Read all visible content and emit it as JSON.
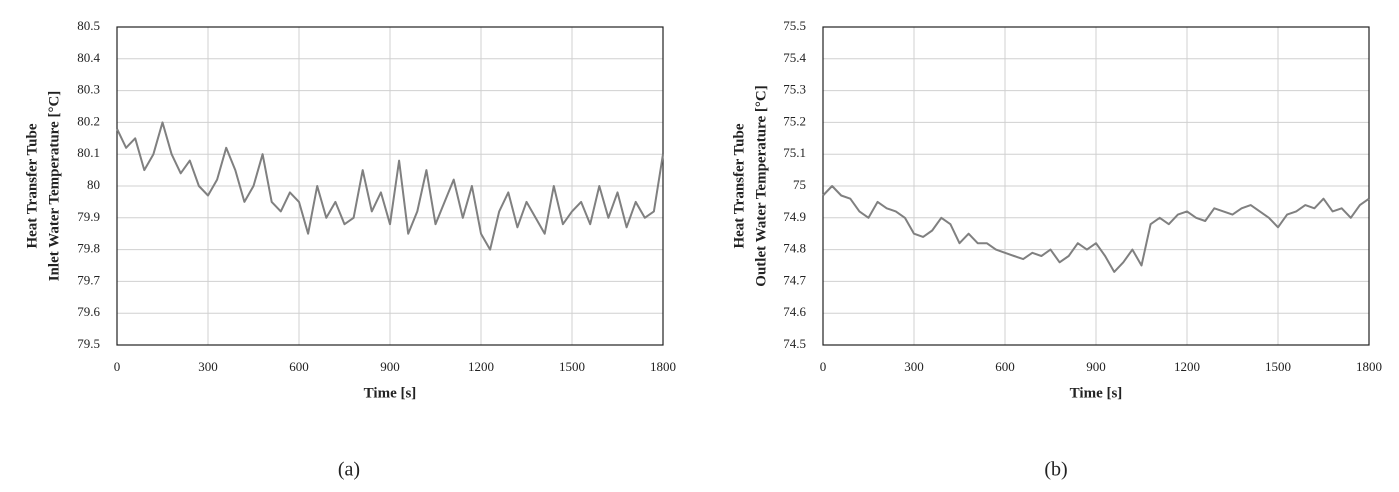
{
  "chart_data": [
    {
      "type": "line",
      "caption": "(a)",
      "xlabel": "Time [s]",
      "ylabel": [
        "Heat Transfer Tube",
        "Inlet Water Temperature [°C]"
      ],
      "color": "#808080",
      "grid": true,
      "xlim": [
        0,
        1800
      ],
      "xticks": [
        0,
        300,
        600,
        900,
        1200,
        1500,
        1800
      ],
      "ylim": [
        79.5,
        80.5
      ],
      "yticks": [
        79.5,
        79.6,
        79.7,
        79.8,
        79.9,
        80,
        80.1,
        80.2,
        80.3,
        80.4,
        80.5
      ],
      "x": [
        0,
        30,
        60,
        90,
        120,
        150,
        180,
        210,
        240,
        270,
        300,
        330,
        360,
        390,
        420,
        450,
        480,
        510,
        540,
        570,
        600,
        630,
        660,
        690,
        720,
        750,
        780,
        810,
        840,
        870,
        900,
        930,
        960,
        990,
        1020,
        1050,
        1080,
        1110,
        1140,
        1170,
        1200,
        1230,
        1260,
        1290,
        1320,
        1350,
        1380,
        1410,
        1440,
        1470,
        1500,
        1530,
        1560,
        1590,
        1620,
        1650,
        1680,
        1710,
        1740,
        1770,
        1800
      ],
      "values": [
        80.18,
        80.12,
        80.15,
        80.05,
        80.1,
        80.2,
        80.1,
        80.04,
        80.08,
        80.0,
        79.97,
        80.02,
        80.12,
        80.05,
        79.95,
        80.0,
        80.1,
        79.95,
        79.92,
        79.98,
        79.95,
        79.85,
        80.0,
        79.9,
        79.95,
        79.88,
        79.9,
        80.05,
        79.92,
        79.98,
        79.88,
        80.08,
        79.85,
        79.92,
        80.05,
        79.88,
        79.95,
        80.02,
        79.9,
        80.0,
        79.85,
        79.8,
        79.92,
        79.98,
        79.87,
        79.95,
        79.9,
        79.85,
        80.0,
        79.88,
        79.92,
        79.95,
        79.88,
        80.0,
        79.9,
        79.98,
        79.87,
        79.95,
        79.9,
        79.92,
        80.1
      ]
    },
    {
      "type": "line",
      "caption": "(b)",
      "xlabel": "Time [s]",
      "ylabel": [
        "Heat Transfer Tube",
        "Outlet Water Temperature [°C]"
      ],
      "color": "#808080",
      "grid": true,
      "xlim": [
        0,
        1800
      ],
      "xticks": [
        0,
        300,
        600,
        900,
        1200,
        1500,
        1800
      ],
      "ylim": [
        74.5,
        75.5
      ],
      "yticks": [
        74.5,
        74.6,
        74.7,
        74.8,
        74.9,
        75,
        75.1,
        75.2,
        75.3,
        75.4,
        75.5
      ],
      "x": [
        0,
        30,
        60,
        90,
        120,
        150,
        180,
        210,
        240,
        270,
        300,
        330,
        360,
        390,
        420,
        450,
        480,
        510,
        540,
        570,
        600,
        630,
        660,
        690,
        720,
        750,
        780,
        810,
        840,
        870,
        900,
        930,
        960,
        990,
        1020,
        1050,
        1080,
        1110,
        1140,
        1170,
        1200,
        1230,
        1260,
        1290,
        1320,
        1350,
        1380,
        1410,
        1440,
        1470,
        1500,
        1530,
        1560,
        1590,
        1620,
        1650,
        1680,
        1710,
        1740,
        1770,
        1800
      ],
      "values": [
        74.97,
        75.0,
        74.97,
        74.96,
        74.92,
        74.9,
        74.95,
        74.93,
        74.92,
        74.9,
        74.85,
        74.84,
        74.86,
        74.9,
        74.88,
        74.82,
        74.85,
        74.82,
        74.82,
        74.8,
        74.79,
        74.78,
        74.77,
        74.79,
        74.78,
        74.8,
        74.76,
        74.78,
        74.82,
        74.8,
        74.82,
        74.78,
        74.73,
        74.76,
        74.8,
        74.75,
        74.88,
        74.9,
        74.88,
        74.91,
        74.92,
        74.9,
        74.89,
        74.93,
        74.92,
        74.91,
        74.93,
        74.94,
        74.92,
        74.9,
        74.87,
        74.91,
        74.92,
        74.94,
        74.93,
        74.96,
        74.92,
        74.93,
        74.9,
        74.94,
        74.96
      ]
    }
  ]
}
